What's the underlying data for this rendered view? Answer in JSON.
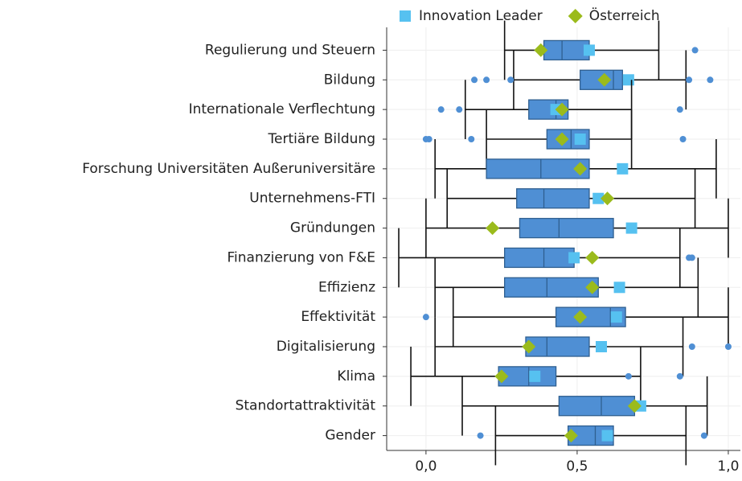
{
  "chart_data": {
    "type": "box",
    "categories": [
      "Regulierung und Steuern",
      "Bildung",
      "Internationale Verflechtung",
      "Tertiäre Bildung",
      "Forschung Universitäten Außeruniversitäre",
      "Unternehmens-FTI",
      "Gründungen",
      "Finanzierung von F&E",
      "Effizienz",
      "Effektivität",
      "Digitalisierung",
      "Klima",
      "Standortattraktivität",
      "Gender"
    ],
    "boxes": [
      {
        "whislo": 0.26,
        "q1": 0.39,
        "med": 0.45,
        "q3": 0.54,
        "whishi": 0.77,
        "fliers": [
          0.89
        ]
      },
      {
        "whislo": 0.29,
        "q1": 0.51,
        "med": 0.62,
        "q3": 0.65,
        "whishi": 0.86,
        "fliers": [
          0.16,
          0.2,
          0.28,
          0.87,
          0.94
        ]
      },
      {
        "whislo": 0.13,
        "q1": 0.34,
        "med": 0.43,
        "q3": 0.47,
        "whishi": 0.68,
        "fliers": [
          0.05,
          0.11,
          0.84
        ]
      },
      {
        "whislo": 0.2,
        "q1": 0.4,
        "med": 0.48,
        "q3": 0.54,
        "whishi": 0.68,
        "fliers": [
          0.0,
          0.01,
          0.15,
          0.85
        ]
      },
      {
        "whislo": 0.03,
        "q1": 0.2,
        "med": 0.38,
        "q3": 0.54,
        "whishi": 0.96,
        "fliers": []
      },
      {
        "whislo": 0.07,
        "q1": 0.3,
        "med": 0.39,
        "q3": 0.54,
        "whishi": 0.89,
        "fliers": []
      },
      {
        "whislo": 0.0,
        "q1": 0.31,
        "med": 0.44,
        "q3": 0.62,
        "whishi": 1.0,
        "fliers": []
      },
      {
        "whislo": -0.09,
        "q1": 0.26,
        "med": 0.39,
        "q3": 0.49,
        "whishi": 0.84,
        "fliers": [
          0.87,
          0.88
        ]
      },
      {
        "whislo": 0.03,
        "q1": 0.26,
        "med": 0.4,
        "q3": 0.57,
        "whishi": 0.9,
        "fliers": []
      },
      {
        "whislo": 0.09,
        "q1": 0.43,
        "med": 0.61,
        "q3": 0.66,
        "whishi": 1.0,
        "fliers": [
          0.0
        ]
      },
      {
        "whislo": 0.03,
        "q1": 0.33,
        "med": 0.4,
        "q3": 0.54,
        "whishi": 0.85,
        "fliers": [
          0.88,
          1.0
        ]
      },
      {
        "whislo": -0.05,
        "q1": 0.24,
        "med": 0.34,
        "q3": 0.43,
        "whishi": 0.71,
        "fliers": [
          0.67,
          0.84
        ]
      },
      {
        "whislo": 0.12,
        "q1": 0.44,
        "med": 0.58,
        "q3": 0.69,
        "whishi": 0.93,
        "fliers": []
      },
      {
        "whislo": 0.23,
        "q1": 0.47,
        "med": 0.56,
        "q3": 0.62,
        "whishi": 0.86,
        "fliers": [
          0.18,
          0.92
        ]
      }
    ],
    "box_color": "#4f8fd4",
    "series": [
      {
        "name": "Innovation Leader",
        "color": "#56c1f0",
        "marker": "square",
        "values": [
          0.54,
          0.67,
          0.43,
          0.51,
          0.65,
          0.57,
          0.68,
          0.49,
          0.64,
          0.63,
          0.58,
          0.36,
          0.71,
          0.6
        ]
      },
      {
        "name": "Österreich",
        "color": "#9bbb1c",
        "marker": "diamond",
        "values": [
          0.38,
          0.59,
          0.45,
          0.45,
          0.51,
          0.6,
          0.22,
          0.55,
          0.55,
          0.51,
          0.34,
          0.25,
          0.69,
          0.48
        ]
      }
    ],
    "xlim": [
      -0.13,
      1.04
    ],
    "xticks": [
      {
        "value": 0,
        "label": "0,0"
      },
      {
        "value": 0.5,
        "label": "0,5"
      },
      {
        "value": 1,
        "label": "1,0"
      }
    ],
    "grid": true,
    "legend": "top"
  }
}
